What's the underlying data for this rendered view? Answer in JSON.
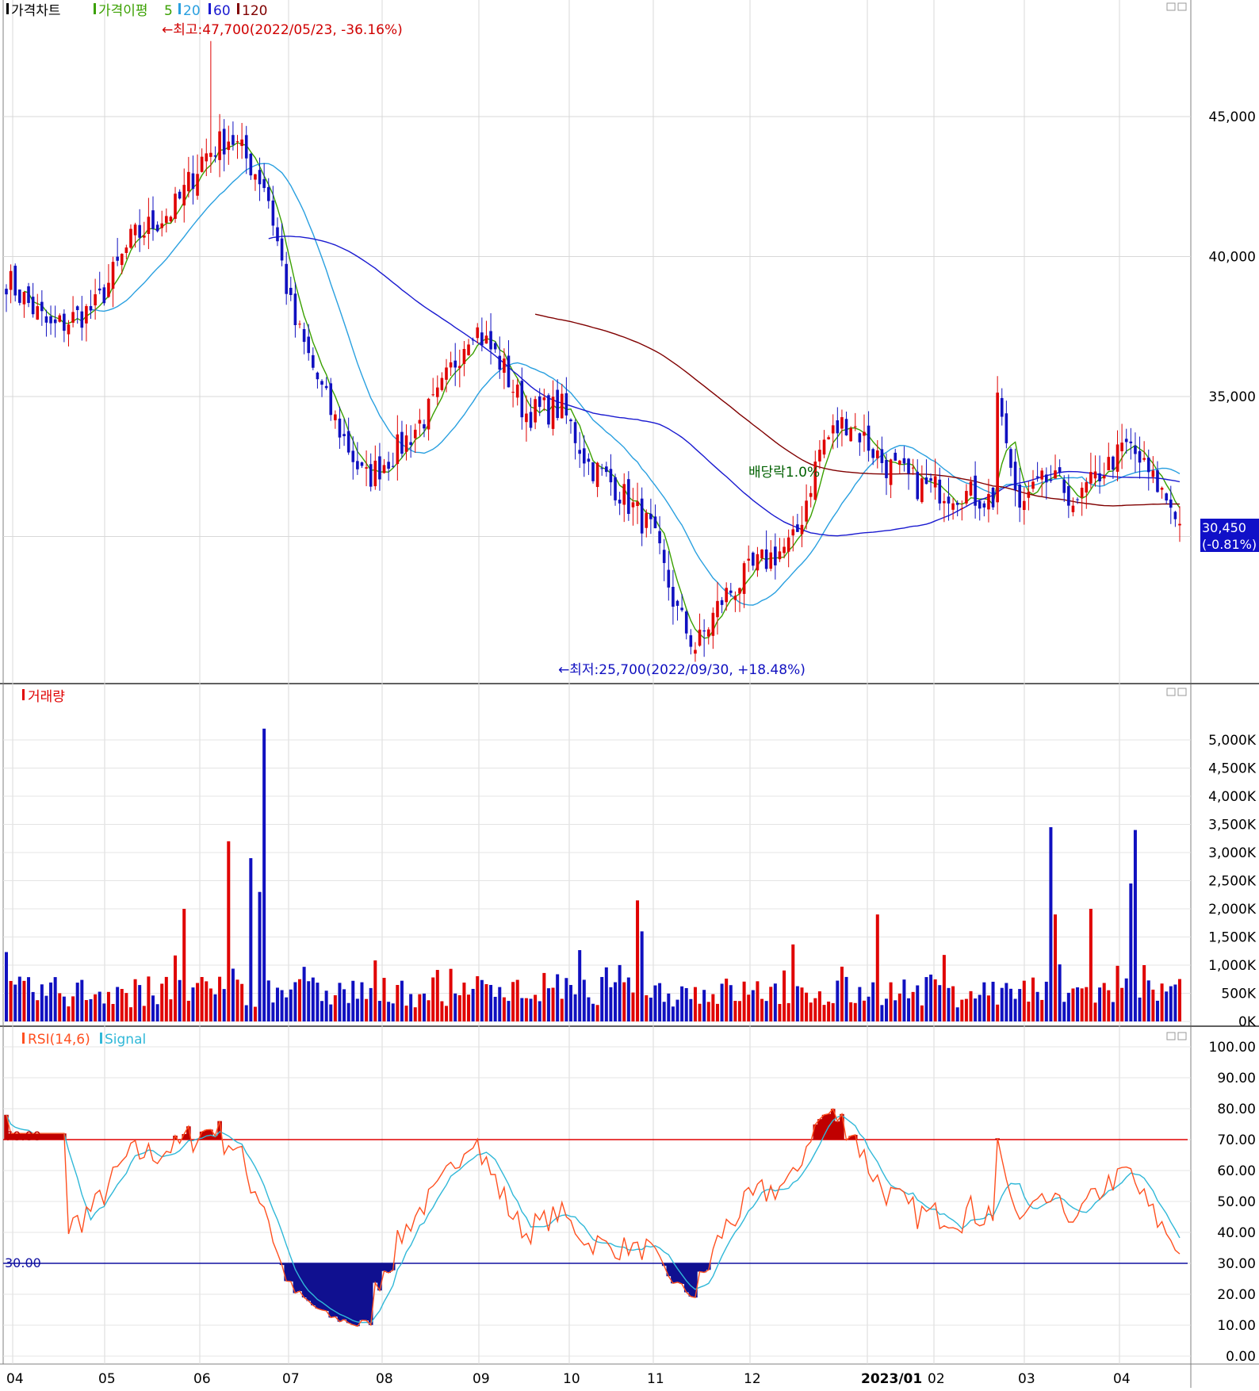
{
  "price_panel": {
    "legend": [
      {
        "label": "가격차트",
        "color": "#000000"
      },
      {
        "label": "가격이평",
        "color": "#3aa000"
      },
      {
        "label": "5",
        "color": "#3aa000"
      },
      {
        "label": "20",
        "color": "#2aa0e0"
      },
      {
        "label": "60",
        "color": "#1a1ad0"
      },
      {
        "label": "120",
        "color": "#800000"
      }
    ],
    "high_annotation": "←최고:47,700(2022/05/23, -36.16%)",
    "low_annotation": "←최저:25,700(2022/09/30, +18.48%)",
    "dividend_label": "배당락1.0%",
    "current_price": "30,450",
    "current_change": "(-0.81%)"
  },
  "volume_panel": {
    "legend": "거래량"
  },
  "rsi_panel": {
    "legend_rsi": "RSI(14,6)",
    "legend_signal": "Signal",
    "upper_label": "70.00",
    "lower_label": "30.00"
  },
  "colors": {
    "up": "#e00000",
    "down": "#1010c0",
    "ma5": "#3aa000",
    "ma20": "#2aa0e0",
    "ma60": "#1a1ad0",
    "ma120": "#800000",
    "rsi": "#ff5020",
    "signal": "#30b8d8"
  },
  "chart_data": [
    {
      "type": "candlestick",
      "name": "price",
      "y_ticks": [
        "40,000",
        "45,000",
        "35,000"
      ],
      "ylim": [
        24800,
        48600
      ],
      "x_month_labels": [
        "04",
        "05",
        "06",
        "07",
        "08",
        "09",
        "10",
        "11",
        "12",
        "2023/01",
        "02",
        "03",
        "04"
      ],
      "x": [
        "22/04",
        "22/05",
        "22/06",
        "22/07",
        "22/08",
        "22/09",
        "22/10",
        "22/11",
        "22/12",
        "23/01",
        "23/02",
        "23/03",
        "23/04"
      ],
      "close": [
        39200,
        40200,
        43500,
        32000,
        37300,
        32500,
        26000,
        30500,
        33600,
        32200,
        36800,
        30400,
        30450
      ],
      "high": 47700,
      "low": 25700
    },
    {
      "type": "bar",
      "name": "volume",
      "y_ticks": [
        "5,000K",
        "4,500K",
        "4,000K",
        "3,500K",
        "3,000K",
        "2,500K",
        "2,000K",
        "1,500K",
        "1,000K",
        "500K",
        "0K"
      ],
      "ylim": [
        0,
        5000000
      ],
      "max_value": 5200000
    },
    {
      "type": "line",
      "name": "rsi",
      "y_ticks": [
        "100.00",
        "90.00",
        "80.00",
        "70.00",
        "60.00",
        "50.00",
        "40.00",
        "30.00",
        "20.00",
        "10.00",
        "0.00"
      ],
      "ylim": [
        0,
        100
      ]
    }
  ]
}
